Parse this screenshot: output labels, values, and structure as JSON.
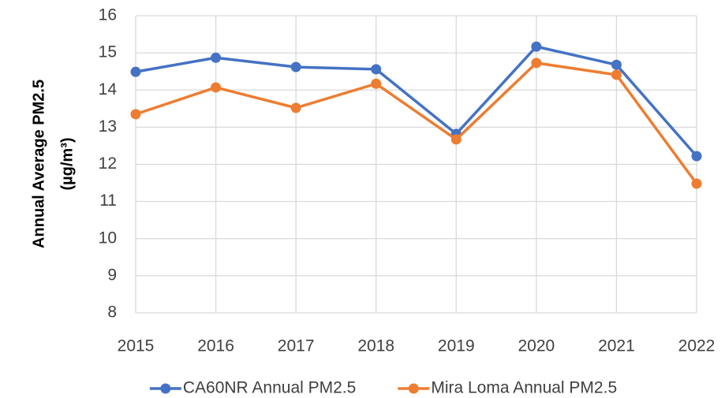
{
  "chart_data": {
    "type": "line",
    "y_label": [
      "Annual Average PM2.5",
      "(µg/m³)"
    ],
    "categories": [
      "2015",
      "2016",
      "2017",
      "2018",
      "2019",
      "2020",
      "2021",
      "2022"
    ],
    "series": [
      {
        "name": "CA60NR Annual PM2.5",
        "color": "#4472c4",
        "values": [
          14.49,
          14.87,
          14.62,
          14.56,
          12.82,
          15.17,
          14.68,
          12.22
        ]
      },
      {
        "name": "Mira Loma Annual PM2.5",
        "color": "#ed7d31",
        "values": [
          13.35,
          14.07,
          13.52,
          14.17,
          12.67,
          14.73,
          14.41,
          11.48
        ]
      }
    ],
    "ylim": [
      8,
      16
    ],
    "yticks": [
      8,
      9,
      10,
      11,
      12,
      13,
      14,
      15,
      16
    ],
    "grid": true,
    "legend": "bottom"
  }
}
